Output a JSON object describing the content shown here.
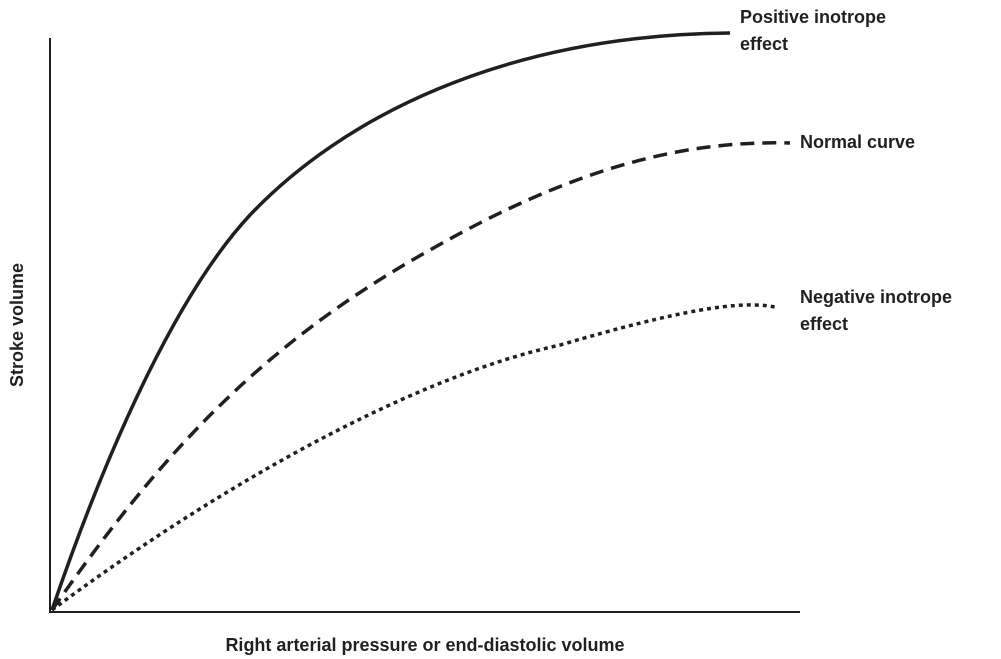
{
  "axes": {
    "x_label": "Right arterial pressure or end-diastolic volume",
    "y_label": "Stroke volume"
  },
  "curves": [
    {
      "label": [
        "Positive inotrope",
        "effect"
      ]
    },
    {
      "label": [
        "Normal curve"
      ]
    },
    {
      "label": [
        "Negative inotrope",
        "effect"
      ]
    }
  ]
}
